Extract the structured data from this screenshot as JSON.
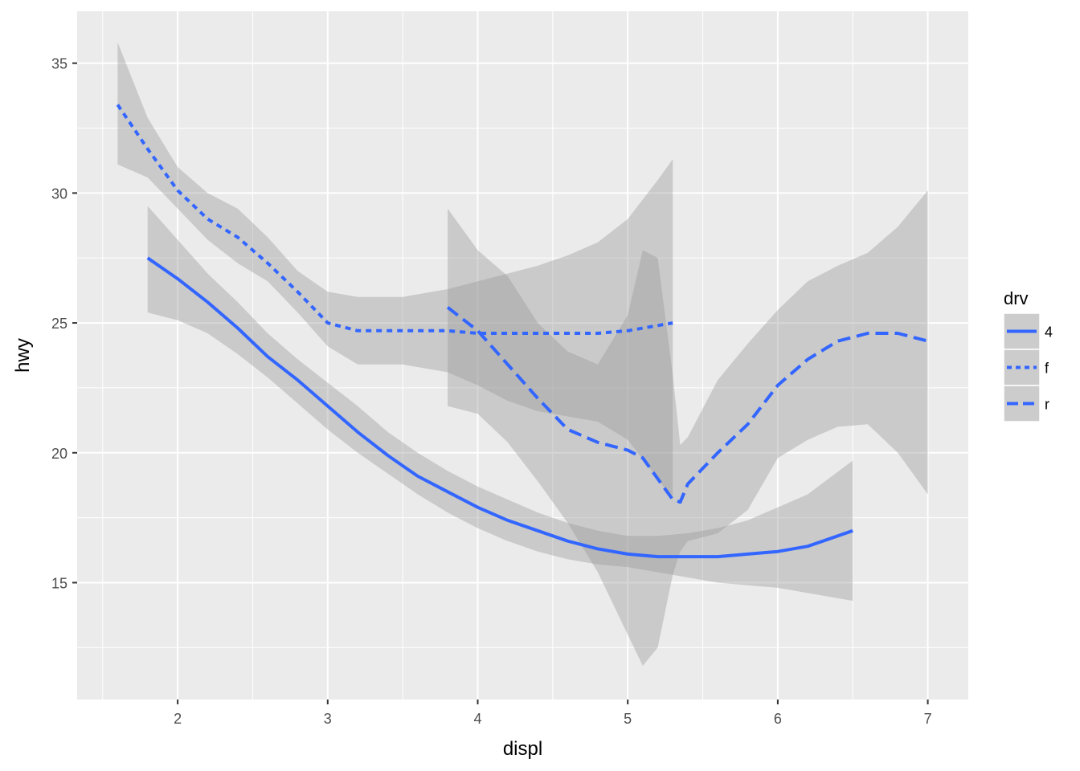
{
  "chart_data": {
    "type": "line",
    "xlabel": "displ",
    "ylabel": "hwy",
    "xlim": [
      1.33,
      7.27
    ],
    "ylim": [
      10.5,
      37.0
    ],
    "x_ticks": [
      2,
      3,
      4,
      5,
      6,
      7
    ],
    "y_ticks": [
      15,
      20,
      25,
      30,
      35
    ],
    "grid": true,
    "legend_position": "right",
    "legend_title": "drv",
    "colors": {
      "line": "#3366ff",
      "ribbon": "#999999",
      "panel": "#ebebeb",
      "grid": "#ffffff"
    },
    "series": [
      {
        "name": "4",
        "linetype": "solid",
        "x": [
          1.8,
          2.0,
          2.2,
          2.4,
          2.6,
          2.8,
          3.0,
          3.2,
          3.4,
          3.6,
          3.8,
          4.0,
          4.2,
          4.4,
          4.6,
          4.8,
          5.0,
          5.2,
          5.4,
          5.6,
          5.8,
          6.0,
          6.2,
          6.5
        ],
        "y": [
          27.5,
          26.7,
          25.8,
          24.8,
          23.7,
          22.8,
          21.8,
          20.8,
          19.9,
          19.1,
          18.5,
          17.9,
          17.4,
          17.0,
          16.6,
          16.3,
          16.1,
          16.0,
          16.0,
          16.0,
          16.1,
          16.2,
          16.4,
          17.0
        ],
        "lower": [
          25.4,
          25.1,
          24.6,
          23.8,
          22.9,
          21.9,
          20.9,
          20.0,
          19.2,
          18.4,
          17.7,
          17.1,
          16.6,
          16.2,
          15.9,
          15.7,
          15.6,
          15.4,
          15.2,
          15.0,
          14.9,
          14.8,
          14.6,
          14.3
        ],
        "upper": [
          29.5,
          28.2,
          26.9,
          25.8,
          24.6,
          23.6,
          22.7,
          21.8,
          20.8,
          20.0,
          19.3,
          18.7,
          18.2,
          17.7,
          17.3,
          17.0,
          16.8,
          16.8,
          16.9,
          17.1,
          17.4,
          17.9,
          18.4,
          19.7
        ]
      },
      {
        "name": "f",
        "linetype": "dotted",
        "x": [
          1.6,
          1.8,
          2.0,
          2.2,
          2.4,
          2.6,
          2.8,
          3.0,
          3.2,
          3.5,
          3.8,
          4.0,
          4.2,
          4.4,
          4.6,
          4.8,
          5.0,
          5.2,
          5.3
        ],
        "y": [
          33.4,
          31.7,
          30.1,
          29.0,
          28.3,
          27.3,
          26.2,
          25.0,
          24.7,
          24.7,
          24.7,
          24.6,
          24.6,
          24.6,
          24.6,
          24.6,
          24.7,
          24.9,
          25.0
        ],
        "lower": [
          31.1,
          30.6,
          29.4,
          28.2,
          27.3,
          26.6,
          25.4,
          24.1,
          23.4,
          23.4,
          23.1,
          22.6,
          22.0,
          21.6,
          21.4,
          21.2,
          20.5,
          19.0,
          18.2
        ],
        "upper": [
          35.8,
          32.9,
          31.0,
          30.0,
          29.4,
          28.3,
          27.0,
          26.2,
          26.0,
          26.0,
          26.3,
          26.6,
          26.9,
          27.2,
          27.6,
          28.1,
          29.0,
          30.5,
          31.3
        ]
      },
      {
        "name": "r",
        "linetype": "dashed",
        "x": [
          3.8,
          4.0,
          4.2,
          4.4,
          4.6,
          4.8,
          5.0,
          5.1,
          5.2,
          5.3,
          5.35,
          5.4,
          5.6,
          5.8,
          6.0,
          6.2,
          6.4,
          6.6,
          6.8,
          7.0
        ],
        "y": [
          25.6,
          24.7,
          23.4,
          22.1,
          20.9,
          20.4,
          20.1,
          19.8,
          19.0,
          18.2,
          18.1,
          18.8,
          20.0,
          21.1,
          22.6,
          23.6,
          24.3,
          24.6,
          24.6,
          24.3
        ],
        "lower": [
          21.8,
          21.5,
          20.4,
          18.9,
          17.3,
          15.4,
          13.0,
          11.8,
          12.5,
          15.3,
          16.2,
          16.6,
          16.9,
          17.8,
          19.8,
          20.5,
          21.0,
          21.1,
          20.0,
          18.4
        ],
        "upper": [
          29.4,
          27.8,
          26.8,
          25.0,
          23.9,
          23.4,
          25.3,
          27.8,
          27.5,
          23.0,
          20.3,
          20.6,
          22.8,
          24.2,
          25.5,
          26.6,
          27.2,
          27.7,
          28.7,
          30.1
        ]
      }
    ]
  }
}
